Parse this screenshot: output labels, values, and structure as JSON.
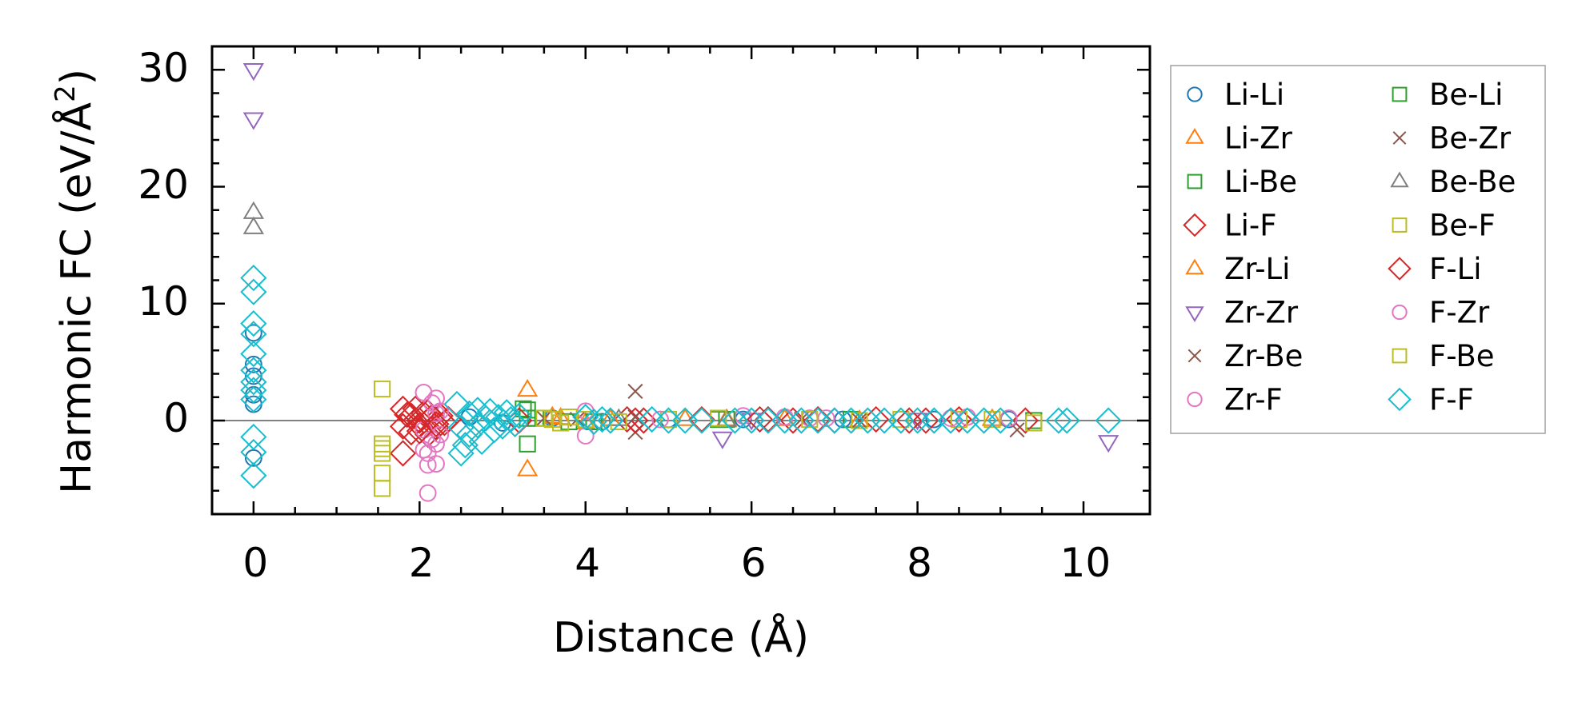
{
  "chart_data": {
    "type": "scatter",
    "title": "",
    "xlabel": "Distance (Å)",
    "ylabel_main": "Harmonic FC (eV/Å",
    "ylabel_sup": "2",
    "ylabel_close": ")",
    "xlim": [
      -0.5,
      10.8
    ],
    "ylim": [
      -8,
      32
    ],
    "xticks": [
      0,
      2,
      4,
      6,
      8,
      10
    ],
    "yticks": [
      0,
      10,
      20,
      30
    ],
    "xtick_labels": [
      "0",
      "2",
      "4",
      "6",
      "8",
      "10"
    ],
    "ytick_labels": [
      "0",
      "10",
      "20",
      "30"
    ],
    "hline_y": 0,
    "legend_position": "right, outside",
    "series": [
      {
        "name": "Li-Li",
        "marker": "circle",
        "color": "#1f77b4",
        "points": [
          [
            0,
            7.5
          ],
          [
            0,
            4.8
          ],
          [
            0,
            3.8
          ],
          [
            0,
            2.2
          ],
          [
            0,
            1.4
          ],
          [
            0,
            -3.2
          ],
          [
            2.6,
            0.3
          ],
          [
            3.0,
            -0.2
          ],
          [
            3.6,
            0.2
          ],
          [
            4.2,
            -0.1
          ],
          [
            5.0,
            0.1
          ],
          [
            5.9,
            0.1
          ],
          [
            7.1,
            0.1
          ],
          [
            8.2,
            0.1
          ],
          [
            9.1,
            0.1
          ]
        ]
      },
      {
        "name": "Li-Zr",
        "marker": "triangle-up",
        "color": "#ff7f0e",
        "points": [
          [
            3.3,
            2.6
          ],
          [
            3.3,
            -4.2
          ],
          [
            3.6,
            0.3
          ],
          [
            4.0,
            -0.2
          ],
          [
            5.2,
            0.1
          ],
          [
            6.4,
            0.1
          ],
          [
            8.9,
            0.1
          ]
        ]
      },
      {
        "name": "Li-Be",
        "marker": "square",
        "color": "#2ca02c",
        "points": [
          [
            3.3,
            0.9
          ],
          [
            3.3,
            -2.0
          ],
          [
            3.4,
            0.2
          ],
          [
            4.1,
            -0.1
          ],
          [
            5.6,
            0.1
          ],
          [
            7.2,
            0.1
          ],
          [
            9.4,
            0.0
          ]
        ]
      },
      {
        "name": "Li-F",
        "marker": "diamond",
        "color": "#d62728",
        "points": [
          [
            1.8,
            1.0
          ],
          [
            1.8,
            -0.5
          ],
          [
            1.8,
            -2.8
          ],
          [
            1.85,
            0.5
          ],
          [
            1.9,
            -1.0
          ],
          [
            1.95,
            1.0
          ],
          [
            2.0,
            0.0
          ],
          [
            2.0,
            -0.4
          ],
          [
            2.05,
            0.6
          ],
          [
            2.1,
            -1.2
          ],
          [
            2.15,
            0.3
          ],
          [
            2.2,
            -0.6
          ],
          [
            2.25,
            0.4
          ],
          [
            2.3,
            -0.2
          ],
          [
            2.35,
            0.1
          ],
          [
            4.5,
            0.1
          ],
          [
            4.7,
            0.0
          ],
          [
            5.4,
            0.1
          ],
          [
            6.2,
            0.1
          ],
          [
            6.5,
            0.0
          ],
          [
            6.8,
            0.1
          ],
          [
            7.0,
            0.0
          ],
          [
            7.5,
            0.1
          ],
          [
            8.1,
            0.0
          ],
          [
            8.5,
            0.1
          ],
          [
            9.3,
            0.0
          ]
        ]
      },
      {
        "name": "Zr-Li",
        "marker": "triangle-up",
        "color": "#ff7f0e",
        "points": [
          [
            3.7,
            0.2
          ],
          [
            4.3,
            0.1
          ],
          [
            5.7,
            0.1
          ],
          [
            7.3,
            0.0
          ]
        ]
      },
      {
        "name": "Zr-Zr",
        "marker": "triangle-down",
        "color": "#9467bd",
        "points": [
          [
            0,
            30.0
          ],
          [
            0,
            25.8
          ],
          [
            5.65,
            -1.5
          ],
          [
            10.3,
            -1.8
          ],
          [
            6.0,
            0.1
          ],
          [
            8.0,
            0.1
          ]
        ]
      },
      {
        "name": "Zr-Be",
        "marker": "x",
        "color": "#8c564b",
        "points": [
          [
            4.6,
            2.5
          ],
          [
            4.6,
            -1.0
          ],
          [
            3.9,
            0.1
          ],
          [
            6.6,
            0.1
          ],
          [
            9.2,
            -0.8
          ]
        ]
      },
      {
        "name": "Zr-F",
        "marker": "circle",
        "color": "#e377c2",
        "points": [
          [
            2.05,
            2.4
          ],
          [
            2.05,
            -0.8
          ],
          [
            2.05,
            -2.5
          ],
          [
            2.1,
            -3.8
          ],
          [
            2.1,
            -6.2
          ],
          [
            2.15,
            1.5
          ],
          [
            2.15,
            -1.6
          ],
          [
            2.2,
            -3.7
          ],
          [
            2.2,
            0.6
          ],
          [
            2.2,
            -2.0
          ],
          [
            2.25,
            0.8
          ],
          [
            2.25,
            -1.2
          ],
          [
            4.0,
            0.8
          ],
          [
            4.0,
            -1.3
          ],
          [
            5.9,
            0.4
          ],
          [
            6.4,
            0.3
          ],
          [
            6.7,
            0.2
          ],
          [
            8.6,
            0.3
          ],
          [
            9.1,
            0.2
          ]
        ]
      },
      {
        "name": "Be-Li",
        "marker": "square",
        "color": "#2ca02c",
        "points": [
          [
            3.25,
            1.0
          ],
          [
            3.3,
            0.2
          ],
          [
            3.8,
            -0.1
          ],
          [
            5.7,
            0.1
          ]
        ]
      },
      {
        "name": "Be-Zr",
        "marker": "x",
        "color": "#8c564b",
        "points": [
          [
            3.5,
            0.2
          ],
          [
            4.6,
            0.3
          ],
          [
            7.3,
            0.0
          ]
        ]
      },
      {
        "name": "Be-Be",
        "marker": "triangle-up",
        "color": "#7f7f7f",
        "points": [
          [
            0,
            17.8
          ],
          [
            0,
            16.5
          ],
          [
            4.4,
            0.1
          ],
          [
            5.7,
            0.0
          ]
        ]
      },
      {
        "name": "Be-F",
        "marker": "square",
        "color": "#bcbd22",
        "points": [
          [
            1.55,
            2.7
          ],
          [
            1.55,
            -2.0
          ],
          [
            1.55,
            -2.8
          ],
          [
            1.55,
            -4.5
          ],
          [
            1.55,
            -5.8
          ],
          [
            3.5,
            0.2
          ],
          [
            3.7,
            -0.2
          ],
          [
            3.8,
            0.3
          ],
          [
            4.0,
            0.1
          ],
          [
            5.0,
            0.1
          ],
          [
            5.6,
            0.2
          ],
          [
            7.3,
            0.0
          ],
          [
            7.8,
            0.1
          ],
          [
            8.5,
            0.1
          ],
          [
            9.4,
            -0.2
          ]
        ]
      },
      {
        "name": "F-Li",
        "marker": "diamond",
        "color": "#d62728",
        "points": [
          [
            1.9,
            0.4
          ],
          [
            2.0,
            -0.9
          ],
          [
            2.1,
            0.7
          ],
          [
            2.2,
            -0.3
          ],
          [
            3.2,
            0.0
          ],
          [
            4.6,
            0.0
          ],
          [
            6.1,
            0.1
          ],
          [
            7.9,
            0.0
          ]
        ]
      },
      {
        "name": "F-Zr",
        "marker": "circle",
        "color": "#e377c2",
        "points": [
          [
            2.1,
            -2.8
          ],
          [
            2.2,
            1.9
          ],
          [
            4.9,
            0.1
          ],
          [
            6.9,
            0.2
          ],
          [
            8.4,
            0.2
          ]
        ]
      },
      {
        "name": "F-Be",
        "marker": "square",
        "color": "#bcbd22",
        "points": [
          [
            1.55,
            -2.4
          ],
          [
            3.6,
            0.1
          ],
          [
            4.4,
            -0.1
          ],
          [
            6.7,
            0.1
          ],
          [
            8.9,
            0.1
          ]
        ]
      },
      {
        "name": "F-F",
        "marker": "diamond",
        "color": "#17becf",
        "points": [
          [
            0,
            12.2
          ],
          [
            0,
            11.0
          ],
          [
            0,
            8.3
          ],
          [
            0,
            7.4
          ],
          [
            0,
            5.7
          ],
          [
            0,
            4.3
          ],
          [
            0,
            3.3
          ],
          [
            0,
            2.6
          ],
          [
            0,
            1.8
          ],
          [
            0,
            -1.4
          ],
          [
            0,
            -2.7
          ],
          [
            0,
            -4.7
          ],
          [
            2.45,
            1.4
          ],
          [
            2.5,
            -0.6
          ],
          [
            2.5,
            -2.8
          ],
          [
            2.55,
            -2.1
          ],
          [
            2.6,
            0.6
          ],
          [
            2.6,
            -1.2
          ],
          [
            2.7,
            0.9
          ],
          [
            2.7,
            -0.4
          ],
          [
            2.75,
            -1.8
          ],
          [
            2.8,
            0.2
          ],
          [
            2.85,
            0.8
          ],
          [
            2.9,
            -0.8
          ],
          [
            2.95,
            0.3
          ],
          [
            3.0,
            -0.5
          ],
          [
            3.05,
            0.7
          ],
          [
            3.1,
            0.1
          ],
          [
            3.15,
            -0.3
          ],
          [
            3.2,
            0.4
          ],
          [
            4.0,
            0.3
          ],
          [
            4.1,
            -0.1
          ],
          [
            4.2,
            0.1
          ],
          [
            4.3,
            0.0
          ],
          [
            4.8,
            0.1
          ],
          [
            5.0,
            0.0
          ],
          [
            5.2,
            0.0
          ],
          [
            5.4,
            0.0
          ],
          [
            5.8,
            0.0
          ],
          [
            6.0,
            0.0
          ],
          [
            6.2,
            0.0
          ],
          [
            6.4,
            0.0
          ],
          [
            6.6,
            0.0
          ],
          [
            6.8,
            0.0
          ],
          [
            7.0,
            0.0
          ],
          [
            7.2,
            0.0
          ],
          [
            7.4,
            0.0
          ],
          [
            7.6,
            0.0
          ],
          [
            7.8,
            0.0
          ],
          [
            8.0,
            0.0
          ],
          [
            8.2,
            0.0
          ],
          [
            8.4,
            0.0
          ],
          [
            8.6,
            0.0
          ],
          [
            8.8,
            0.0
          ],
          [
            9.0,
            0.0
          ],
          [
            9.7,
            0.0
          ],
          [
            9.8,
            0.0
          ],
          [
            10.3,
            0.0
          ]
        ]
      }
    ]
  }
}
